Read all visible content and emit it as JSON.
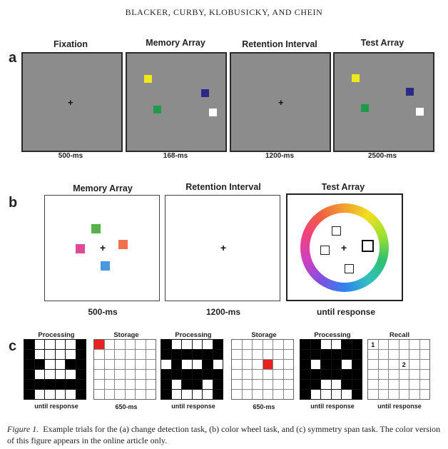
{
  "header": "BLACKER, CURBY, KLOBUSICKY, AND CHEIN",
  "panel_a": {
    "letter": "a",
    "titles": [
      "Fixation",
      "Memory Array",
      "Retention Interval",
      "Test Array"
    ],
    "times": [
      "500-ms",
      "168-ms",
      "1200-ms",
      "2500-ms"
    ],
    "fixation_symbol": "+"
  },
  "panel_b": {
    "letter": "b",
    "titles": [
      "Memory Array",
      "Retention Interval",
      "Test Array"
    ],
    "times": [
      "500-ms",
      "1200-ms",
      "until response"
    ],
    "fixation_symbol": "+"
  },
  "panel_c": {
    "letter": "c",
    "titles": [
      "Processing",
      "Storage",
      "Processing",
      "Storage",
      "Processing",
      "Recall"
    ],
    "times": [
      "until response",
      "650-ms",
      "until response",
      "650-ms",
      "until response",
      "until response"
    ],
    "recall_labels": [
      "1",
      "2"
    ]
  },
  "colors": {
    "yellow": "#f0e81a",
    "navy": "#2a2a86",
    "green": "#1f9a4a",
    "white": "#ffffff",
    "b_green": "#58b24a",
    "b_pink": "#e0489a",
    "b_orange": "#f07050",
    "b_blue": "#4a98e0",
    "storage_red": "#e8201e"
  },
  "caption": {
    "figure_label": "Figure 1.",
    "text": "Example trials for the (a) change detection task, (b) color wheel task, and (c) symmetry span task. The color version of this figure appears in the online article only."
  }
}
